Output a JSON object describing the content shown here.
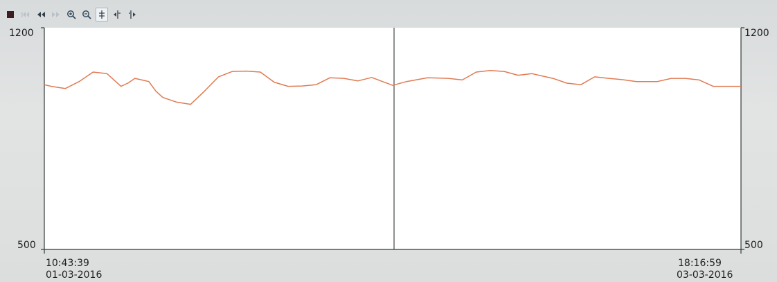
{
  "toolbar": {
    "items": [
      {
        "icon": "stop-icon"
      },
      {
        "icon": "skip-to-start-icon"
      },
      {
        "icon": "rewind-icon"
      },
      {
        "icon": "fast-forward-icon"
      },
      {
        "icon": "zoom-in-icon"
      },
      {
        "icon": "zoom-out-icon"
      },
      {
        "icon": "cursor-vertical-icon"
      },
      {
        "icon": "cursor-left-icon"
      },
      {
        "icon": "cursor-right-icon"
      }
    ]
  },
  "colors": {
    "trace": "#e07a52",
    "axis": "#2f3b35",
    "cursor": "#3f4a44",
    "plot_bg": "#ffffff"
  },
  "chart_data": {
    "type": "line",
    "ylim": [
      500,
      1200
    ],
    "y_left_ticks": [
      "1200",
      "500"
    ],
    "y_right_ticks": [
      "1200",
      "500"
    ],
    "x_start": {
      "time": "10:43:39",
      "date": "01-03-2016"
    },
    "x_end": {
      "time": "18:16:59",
      "date": "03-03-2016"
    },
    "cursor_fraction": 0.502,
    "series": [
      {
        "x": [
          0,
          0.01,
          0.03,
          0.05,
          0.07,
          0.09,
          0.11,
          0.12,
          0.13,
          0.14,
          0.15,
          0.16,
          0.17,
          0.19,
          0.21,
          0.23,
          0.25,
          0.27,
          0.29,
          0.31,
          0.33,
          0.35,
          0.37,
          0.39,
          0.41,
          0.43,
          0.45,
          0.47,
          0.5,
          0.52,
          0.55,
          0.58,
          0.6,
          0.62,
          0.64,
          0.66,
          0.68,
          0.7,
          0.72,
          0.73,
          0.75,
          0.77,
          0.79,
          0.81,
          0.83,
          0.85,
          0.86,
          0.88,
          0.9,
          0.92,
          0.94,
          0.96,
          0.98,
          1.0
        ],
        "y": [
          1020,
          1015,
          1008,
          1030,
          1060,
          1055,
          1015,
          1025,
          1040,
          1035,
          1030,
          1000,
          980,
          965,
          958,
          1000,
          1045,
          1062,
          1063,
          1060,
          1028,
          1015,
          1016,
          1020,
          1042,
          1040,
          1032,
          1043,
          1018,
          1030,
          1042,
          1040,
          1035,
          1060,
          1065,
          1062,
          1050,
          1055,
          1045,
          1040,
          1025,
          1020,
          1045,
          1040,
          1036,
          1030,
          1030,
          1030,
          1040,
          1040,
          1035,
          1015,
          1015,
          1015
        ]
      }
    ]
  }
}
